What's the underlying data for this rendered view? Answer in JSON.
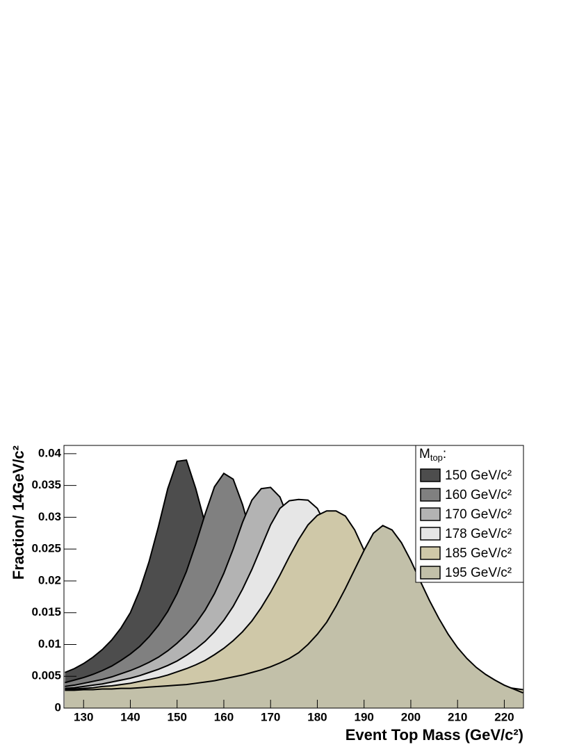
{
  "chart_data": {
    "type": "area",
    "x_label": "Event Top Mass (GeV/c²)",
    "y_label": "Fraction/ 14GeV/c²",
    "legend_title": [
      "M",
      "top",
      ":"
    ],
    "x": [
      126,
      128,
      130,
      132,
      134,
      136,
      138,
      140,
      142,
      144,
      146,
      148,
      150,
      152,
      154,
      156,
      158,
      160,
      162,
      164,
      166,
      168,
      170,
      172,
      174,
      176,
      178,
      180,
      182,
      184,
      186,
      188,
      190,
      192,
      194,
      196,
      198,
      200,
      202,
      204,
      206,
      208,
      210,
      212,
      214,
      216,
      218,
      220,
      222,
      224
    ],
    "series": [
      {
        "name": "150 GeV/c²",
        "color": "#4d4d4d",
        "values": [
          0.0056,
          0.0062,
          0.007,
          0.008,
          0.0092,
          0.0107,
          0.0126,
          0.015,
          0.0185,
          0.023,
          0.0285,
          0.0345,
          0.0388,
          0.039,
          0.0345,
          0.029,
          0.0235,
          0.019,
          0.0155,
          0.0128,
          0.0108,
          0.0093,
          0.0081,
          0.0072,
          0.0065,
          0.0059,
          0.0054,
          0.005,
          0.0046,
          0.0043,
          0.004,
          0.0037,
          0.0035,
          0.0033,
          0.0031,
          0.0029,
          0.0027,
          0.0026,
          0.0024,
          0.0023,
          0.0022,
          0.0021,
          0.002,
          0.0019,
          0.0018,
          0.0017,
          0.0016,
          0.0015,
          0.0015,
          0.0014
        ]
      },
      {
        "name": "160 GeV/c²",
        "color": "#808080",
        "values": [
          0.004,
          0.0044,
          0.0048,
          0.0053,
          0.0059,
          0.0066,
          0.0075,
          0.0085,
          0.0097,
          0.0112,
          0.013,
          0.0152,
          0.018,
          0.0215,
          0.0258,
          0.0305,
          0.0348,
          0.0369,
          0.036,
          0.032,
          0.0268,
          0.0218,
          0.0178,
          0.0146,
          0.0121,
          0.0102,
          0.0088,
          0.0077,
          0.0068,
          0.0061,
          0.0055,
          0.005,
          0.0046,
          0.0042,
          0.0039,
          0.0036,
          0.0034,
          0.0031,
          0.0029,
          0.0027,
          0.0026,
          0.0024,
          0.0023,
          0.0022,
          0.0021,
          0.002,
          0.0019,
          0.0018,
          0.0017,
          0.0016
        ]
      },
      {
        "name": "170 GeV/c²",
        "color": "#b3b3b3",
        "values": [
          0.0034,
          0.0036,
          0.0039,
          0.0042,
          0.0045,
          0.0049,
          0.0054,
          0.0059,
          0.0065,
          0.0072,
          0.008,
          0.009,
          0.0102,
          0.0116,
          0.0133,
          0.0154,
          0.018,
          0.0212,
          0.025,
          0.0292,
          0.0327,
          0.0345,
          0.0347,
          0.0332,
          0.0295,
          0.0252,
          0.021,
          0.0173,
          0.0143,
          0.0119,
          0.0101,
          0.0087,
          0.0076,
          0.0067,
          0.006,
          0.0054,
          0.0049,
          0.0045,
          0.0041,
          0.0038,
          0.0035,
          0.0033,
          0.0031,
          0.0029,
          0.0027,
          0.0025,
          0.0024,
          0.0023,
          0.0022,
          0.0021
        ]
      },
      {
        "name": "178 GeV/c²",
        "color": "#e6e6e6",
        "values": [
          0.0031,
          0.0032,
          0.0034,
          0.0036,
          0.0038,
          0.0041,
          0.0044,
          0.0047,
          0.0051,
          0.0056,
          0.0061,
          0.0067,
          0.0074,
          0.0083,
          0.0093,
          0.0105,
          0.012,
          0.0138,
          0.016,
          0.0187,
          0.0218,
          0.0253,
          0.0288,
          0.0314,
          0.0326,
          0.0328,
          0.0327,
          0.0314,
          0.0285,
          0.0248,
          0.021,
          0.0176,
          0.0147,
          0.0123,
          0.0104,
          0.0089,
          0.0077,
          0.0068,
          0.006,
          0.0054,
          0.0049,
          0.0044,
          0.004,
          0.0037,
          0.0034,
          0.0032,
          0.003,
          0.0028,
          0.0026,
          0.0025
        ]
      },
      {
        "name": "185 GeV/c²",
        "color": "#cfc8a8",
        "values": [
          0.0029,
          0.003,
          0.0031,
          0.0032,
          0.0034,
          0.0035,
          0.0037,
          0.0039,
          0.0042,
          0.0045,
          0.0048,
          0.0052,
          0.0057,
          0.0062,
          0.0068,
          0.0075,
          0.0084,
          0.0094,
          0.0106,
          0.012,
          0.0137,
          0.0158,
          0.0182,
          0.0209,
          0.0238,
          0.0265,
          0.0288,
          0.0303,
          0.031,
          0.031,
          0.0302,
          0.028,
          0.0248,
          0.0212,
          0.0178,
          0.0148,
          0.0123,
          0.0103,
          0.0088,
          0.0076,
          0.0066,
          0.0058,
          0.0052,
          0.0047,
          0.0042,
          0.0039,
          0.0036,
          0.0033,
          0.0031,
          0.0029
        ]
      },
      {
        "name": "195 GeV/c²",
        "color": "#c2c0a9",
        "values": [
          0.0028,
          0.0028,
          0.0029,
          0.0029,
          0.003,
          0.003,
          0.0031,
          0.0031,
          0.0032,
          0.0033,
          0.0034,
          0.0035,
          0.0036,
          0.0037,
          0.0039,
          0.0041,
          0.0043,
          0.0046,
          0.0049,
          0.0052,
          0.0056,
          0.006,
          0.0065,
          0.0071,
          0.0078,
          0.0087,
          0.01,
          0.0116,
          0.0135,
          0.016,
          0.0188,
          0.0218,
          0.0248,
          0.0275,
          0.0287,
          0.028,
          0.026,
          0.0232,
          0.02,
          0.0169,
          0.0141,
          0.0116,
          0.0095,
          0.0078,
          0.0064,
          0.0053,
          0.0044,
          0.0036,
          0.003,
          0.0024
        ]
      }
    ],
    "xlim": [
      125.8,
      224.1
    ],
    "ylim": [
      0,
      0.0413
    ],
    "xticks": [
      130,
      140,
      150,
      160,
      170,
      180,
      190,
      200,
      210,
      220
    ],
    "yticks": [
      0,
      0.005,
      0.01,
      0.015,
      0.02,
      0.025,
      0.03,
      0.035,
      0.04
    ]
  }
}
